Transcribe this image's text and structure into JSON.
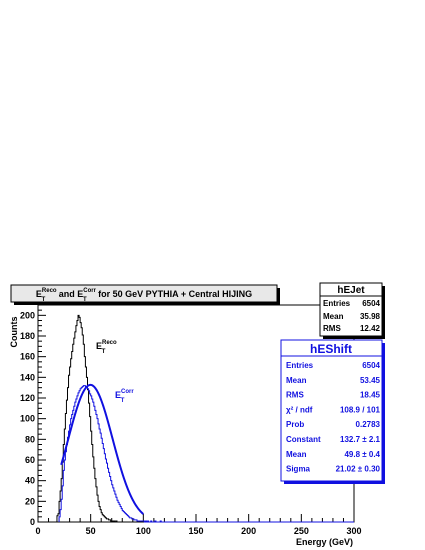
{
  "title": {
    "sym1": "E",
    "sub1": "T",
    "sup1": "Reco",
    "mid": " and ",
    "sym2": "E",
    "sub2": "T",
    "sup2": "Corr",
    "rest": " for 50 GeV PYTHIA + Central HIJING"
  },
  "labels": {
    "reco": {
      "sym": "E",
      "sub": "T",
      "sup": "Reco"
    },
    "corr": {
      "sym": "E",
      "sub": "T",
      "sup": "Corr"
    }
  },
  "stats_jet": {
    "title": "hEJet",
    "rows": [
      {
        "label": "Entries",
        "value": "6504"
      },
      {
        "label": "Mean",
        "value": "35.98"
      },
      {
        "label": "RMS",
        "value": "12.42"
      }
    ]
  },
  "stats_shift": {
    "title": "hEShift",
    "rows": [
      {
        "label": "Entries",
        "value": "6504"
      },
      {
        "label": "Mean",
        "value": "53.45"
      },
      {
        "label": "RMS",
        "value": "18.45"
      },
      {
        "label": "χ² / ndf",
        "value": "108.9 / 101"
      },
      {
        "label": "Prob",
        "value": "0.2783"
      },
      {
        "label": "Constant",
        "value": "132.7 ± 2.1"
      },
      {
        "label": "Mean",
        "value": "49.8 ± 0.4"
      },
      {
        "label": "Sigma",
        "value": "21.02 ± 0.30"
      }
    ]
  },
  "colors": {
    "reco": "#000000",
    "corr": "#1010e0",
    "fit": "#1010e0"
  },
  "chart_data": {
    "type": "line",
    "xlabel": "Energy (GeV)",
    "ylabel": "Counts",
    "xlim": [
      0,
      300
    ],
    "ylim": [
      0,
      210
    ],
    "xticks": [
      0,
      50,
      100,
      150,
      200,
      250,
      300
    ],
    "yticks": [
      0,
      20,
      40,
      60,
      80,
      100,
      120,
      140,
      160,
      180,
      200
    ],
    "bin_width": 1,
    "series": [
      {
        "name": "hEJet",
        "x_start": 18,
        "values": [
          6,
          8,
          20,
          30,
          42,
          58,
          75,
          90,
          105,
          118,
          130,
          142,
          150,
          158,
          165,
          172,
          178,
          184,
          190,
          195,
          200,
          198,
          193,
          188,
          181,
          172,
          160,
          150,
          140,
          128,
          115,
          102,
          88,
          75,
          63,
          52,
          42,
          34,
          26,
          20,
          15,
          12,
          9,
          7,
          6,
          5,
          4,
          3,
          3,
          2,
          2,
          1,
          1,
          1,
          1,
          0,
          1,
          0
        ]
      },
      {
        "name": "hEShift",
        "x_start": 20,
        "values": [
          5,
          12,
          22,
          35,
          50,
          60,
          68,
          75,
          82,
          88,
          94,
          100,
          104,
          108,
          112,
          116,
          119,
          122,
          125,
          127,
          129,
          130,
          131,
          132,
          132,
          131,
          130,
          129,
          127,
          124,
          122,
          119,
          116,
          112,
          108,
          104,
          100,
          95,
          90,
          86,
          81,
          76,
          71,
          66,
          61,
          57,
          52,
          48,
          44,
          40,
          36,
          33,
          30,
          27,
          24,
          21,
          19,
          17,
          15,
          13,
          11,
          10,
          9,
          8,
          7,
          6,
          5,
          4,
          4,
          3,
          3,
          2,
          2,
          2,
          1,
          1,
          1,
          1,
          1,
          1,
          1,
          0,
          1,
          0,
          1,
          0,
          0,
          1,
          0,
          0,
          0,
          1,
          0,
          0,
          0,
          0,
          1
        ]
      }
    ],
    "fit": {
      "name": "gaus",
      "constant": 132.7,
      "mean": 49.8,
      "sigma": 21.02,
      "x_range": [
        22,
        100
      ]
    }
  }
}
